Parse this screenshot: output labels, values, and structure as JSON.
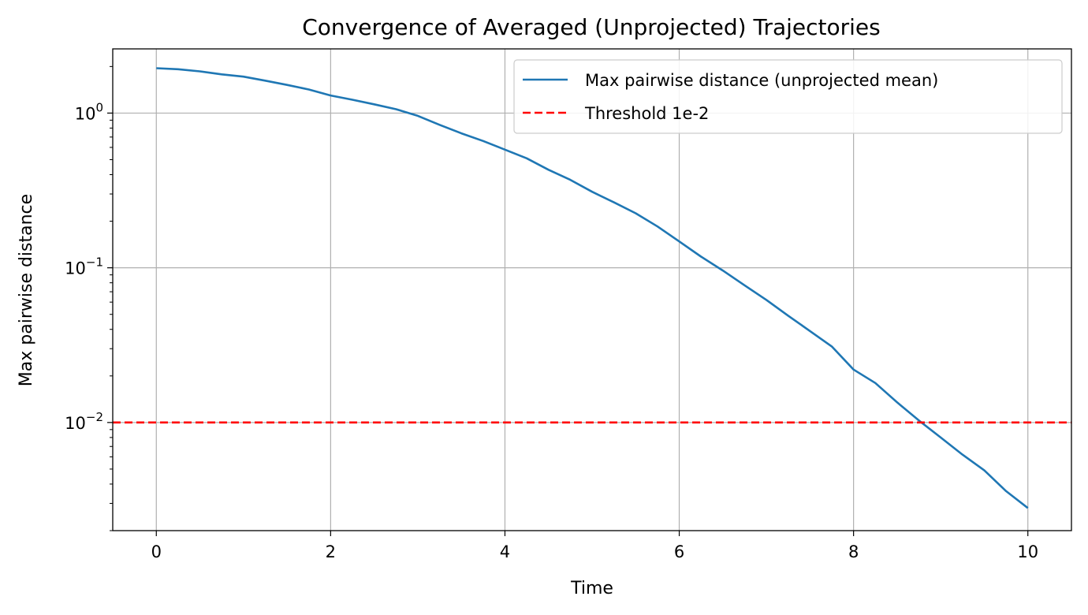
{
  "chart_data": {
    "type": "line",
    "title": "Convergence of Averaged (Unprojected) Trajectories",
    "xlabel": "Time",
    "ylabel": "Max pairwise distance",
    "xlim": [
      -0.5,
      10.5
    ],
    "ylim": [
      0.002,
      2.6
    ],
    "yscale": "log",
    "grid": true,
    "legend_position": "upper-right",
    "x_ticks": [
      0,
      2,
      4,
      6,
      8,
      10
    ],
    "x_tick_labels": [
      "0",
      "2",
      "4",
      "6",
      "8",
      "10"
    ],
    "y_ticks": [
      1,
      0.1,
      0.01
    ],
    "y_tick_labels": [
      {
        "base": "10",
        "exp": "0"
      },
      {
        "base": "10",
        "exp": "−1"
      },
      {
        "base": "10",
        "exp": "−2"
      }
    ],
    "series": [
      {
        "name": "Max pairwise distance (unprojected mean)",
        "color": "#1f77b4",
        "style": "solid",
        "x": [
          0,
          0.25,
          0.5,
          0.75,
          1.0,
          1.25,
          1.5,
          1.75,
          2.0,
          2.25,
          2.5,
          2.75,
          3.0,
          3.25,
          3.5,
          3.75,
          4.0,
          4.25,
          4.5,
          4.75,
          5.0,
          5.25,
          5.5,
          5.75,
          6.0,
          6.25,
          6.5,
          6.75,
          7.0,
          7.25,
          7.5,
          7.75,
          8.0,
          8.25,
          8.5,
          8.75,
          9.0,
          9.25,
          9.5,
          9.75,
          10.0
        ],
        "y": [
          1.95,
          1.92,
          1.86,
          1.78,
          1.72,
          1.62,
          1.52,
          1.42,
          1.3,
          1.22,
          1.14,
          1.06,
          0.96,
          0.84,
          0.74,
          0.66,
          0.58,
          0.51,
          0.43,
          0.37,
          0.31,
          0.265,
          0.225,
          0.185,
          0.148,
          0.118,
          0.096,
          0.077,
          0.062,
          0.049,
          0.039,
          0.031,
          0.022,
          0.018,
          0.0135,
          0.0103,
          0.008,
          0.0062,
          0.0049,
          0.0036,
          0.0028
        ]
      },
      {
        "name": "Threshold 1e-2",
        "color": "#ff0000",
        "style": "dashed",
        "y_constant": 0.01
      }
    ]
  }
}
